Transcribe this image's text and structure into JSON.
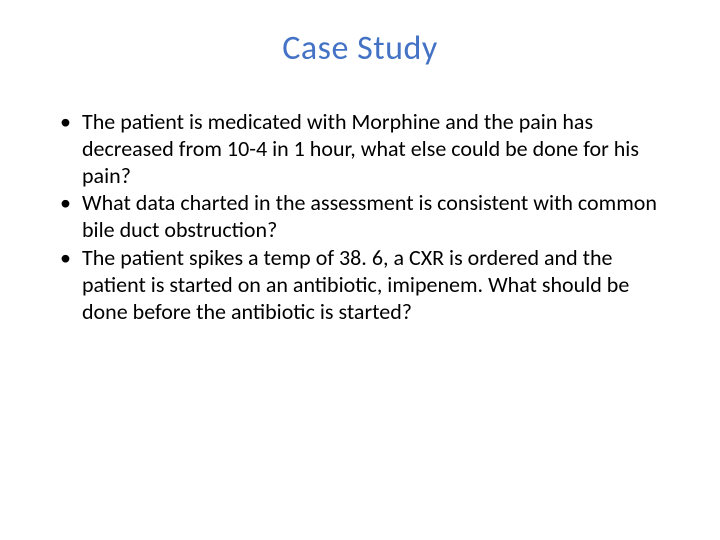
{
  "slide": {
    "title": "Case Study",
    "title_color": "#4472c4",
    "title_fontsize": 34,
    "background_color": "#ffffff",
    "body_fontsize": 22,
    "body_color": "#000000",
    "bullets": [
      "The patient is medicated with Morphine and the pain has decreased from 10-4 in 1 hour, what else could be done for his pain?",
      "What data charted in the assessment is consistent with common bile duct obstruction?",
      "The patient spikes a temp of 38. 6, a CXR is ordered and the patient is started on an antibiotic, imipenem. What should be done before the antibiotic is started?"
    ]
  }
}
